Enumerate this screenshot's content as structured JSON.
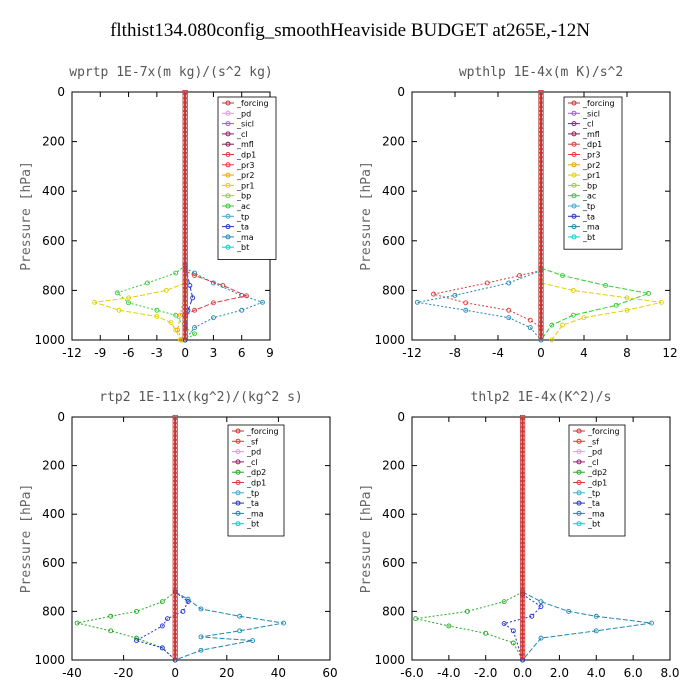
{
  "title": "flthist134.080config_smoothHeaviside  BUDGET at265E,-12N",
  "colors": {
    "_forcing": "#cc3333",
    "_pd": "#e89ad8",
    "_sicl": "#9a5fcf",
    "_cl": "#9a1a6e",
    "_mfl": "#8b1a4e",
    "_dp1": "#e03a3a",
    "_pr3": "#ff3333",
    "_pr2": "#f4a300",
    "_pr1": "#e0d000",
    "_bp": "#9acd32",
    "_ac": "#33cc33",
    "_tp": "#3fa9d6",
    "_ta": "#2233cc",
    "_ma": "#1f87b4",
    "_bt": "#00d4d4",
    "_sf": "#ff3030",
    "_dp2": "#22aa22",
    "axis_label": "#666666",
    "title_gray": "#555555"
  },
  "chart_data": [
    {
      "type": "line",
      "title": "wprtp   1E-7x(m kg)/(s^2 kg)",
      "ylabel": "Pressure [hPa]",
      "ylim": [
        1000,
        0
      ],
      "xlim": [
        -12,
        9
      ],
      "xticks": [
        "-12",
        "-9",
        "-6",
        "-3",
        "0",
        "3",
        "6",
        "9"
      ],
      "yticks": [
        "0",
        "200",
        "400",
        "600",
        "800",
        "1000"
      ],
      "legend": [
        "_forcing",
        "_pd",
        "_sicl",
        "_cl",
        "_mfl",
        "_dp1",
        "_pr3",
        "_pr2",
        "_pr1",
        "_bp",
        "_ac",
        "_tp",
        "_ta",
        "_ma",
        "_bt"
      ],
      "series": [
        {
          "name": "_ac",
          "points": [
            [
              0,
              700
            ],
            [
              -1,
              730
            ],
            [
              -4,
              770
            ],
            [
              -7.2,
              810
            ],
            [
              -6,
              850
            ],
            [
              -3,
              880
            ],
            [
              -1,
              900
            ],
            [
              0,
              950
            ],
            [
              1,
              975
            ],
            [
              0,
              1000
            ]
          ]
        },
        {
          "name": "_pr1",
          "points": [
            [
              0,
              770
            ],
            [
              -2,
              800
            ],
            [
              -6,
              830
            ],
            [
              -9.6,
              848
            ],
            [
              -7,
              880
            ],
            [
              -3,
              905
            ],
            [
              -1.5,
              930
            ],
            [
              -1,
              960
            ],
            [
              -0.5,
              1000
            ]
          ]
        },
        {
          "name": "_ma",
          "points": [
            [
              0,
              710
            ],
            [
              1,
              730
            ],
            [
              3,
              770
            ],
            [
              6,
              820
            ],
            [
              8.2,
              848
            ],
            [
              6,
              880
            ],
            [
              3,
              910
            ],
            [
              1,
              950
            ],
            [
              0,
              1000
            ]
          ]
        },
        {
          "name": "_dp1",
          "points": [
            [
              0,
              720
            ],
            [
              1,
              740
            ],
            [
              4,
              780
            ],
            [
              6.5,
              822
            ],
            [
              3,
              850
            ],
            [
              1,
              880
            ],
            [
              0,
              900
            ]
          ]
        },
        {
          "name": "_pr2",
          "points": [
            [
              0,
              800
            ],
            [
              -0.5,
              900
            ],
            [
              -0.8,
              960
            ],
            [
              -0.3,
              1000
            ]
          ]
        },
        {
          "name": "_ta",
          "points": [
            [
              0,
              700
            ],
            [
              0.5,
              780
            ],
            [
              0.8,
              830
            ],
            [
              0.3,
              880
            ],
            [
              0,
              1000
            ]
          ]
        },
        {
          "name": "_bt",
          "points": [
            [
              0,
              0
            ],
            [
              0,
              1000
            ]
          ]
        },
        {
          "name": "_forcing",
          "points": [
            [
              0,
              0
            ],
            [
              0,
              1000
            ]
          ]
        }
      ]
    },
    {
      "type": "line",
      "title": "wpthlp   1E-4x(m K)/s^2",
      "ylabel": "Pressure [hPa]",
      "ylim": [
        1000,
        0
      ],
      "xlim": [
        -12,
        12
      ],
      "xticks": [
        "-12",
        "-8",
        "-4",
        "0",
        "4",
        "8",
        "12"
      ],
      "yticks": [
        "0",
        "200",
        "400",
        "600",
        "800",
        "1000"
      ],
      "legend": [
        "_forcing",
        "_sicl",
        "_cl",
        "_mfl",
        "_dp1",
        "_pr3",
        "_pr2",
        "_pr1",
        "_bp",
        "_ac",
        "_tp",
        "_ta",
        "_ma",
        "_bt"
      ],
      "series": [
        {
          "name": "_dp1",
          "points": [
            [
              0,
              720
            ],
            [
              -2,
              740
            ],
            [
              -5,
              770
            ],
            [
              -10,
              815
            ],
            [
              -7,
              850
            ],
            [
              -3,
              880
            ],
            [
              -1,
              920
            ],
            [
              0,
              950
            ]
          ]
        },
        {
          "name": "_ac",
          "points": [
            [
              0,
              710
            ],
            [
              2,
              740
            ],
            [
              6,
              780
            ],
            [
              10,
              812
            ],
            [
              7,
              860
            ],
            [
              3,
              900
            ],
            [
              1,
              940
            ],
            [
              0,
              1000
            ]
          ]
        },
        {
          "name": "_ma",
          "points": [
            [
              0,
              720
            ],
            [
              -3,
              770
            ],
            [
              -8,
              820
            ],
            [
              -11.5,
              848
            ],
            [
              -7,
              880
            ],
            [
              -3,
              910
            ],
            [
              -1,
              950
            ],
            [
              0,
              1000
            ]
          ]
        },
        {
          "name": "_pr1",
          "points": [
            [
              0,
              770
            ],
            [
              3,
              800
            ],
            [
              8,
              830
            ],
            [
              11.2,
              848
            ],
            [
              8,
              880
            ],
            [
              4,
              910
            ],
            [
              2,
              940
            ],
            [
              1,
              1000
            ]
          ]
        },
        {
          "name": "_bt",
          "points": [
            [
              0,
              0
            ],
            [
              0,
              1000
            ]
          ]
        },
        {
          "name": "_forcing",
          "points": [
            [
              0,
              0
            ],
            [
              0,
              1000
            ]
          ]
        }
      ]
    },
    {
      "type": "line",
      "title": "rtp2   1E-11x(kg^2)/(kg^2 s)",
      "ylabel": "Pressure [hPa]",
      "ylim": [
        1000,
        0
      ],
      "xlim": [
        -40,
        60
      ],
      "xticks": [
        "-40",
        "-20",
        "0",
        "20",
        "40",
        "60"
      ],
      "yticks": [
        "0",
        "200",
        "400",
        "600",
        "800",
        "1000"
      ],
      "legend": [
        "_forcing",
        "_sf",
        "_pd",
        "_cl",
        "_dp2",
        "_dp1",
        "_tp",
        "_ta",
        "_ma",
        "_bt"
      ],
      "series": [
        {
          "name": "_dp2",
          "points": [
            [
              0,
              720
            ],
            [
              -5,
              760
            ],
            [
              -15,
              800
            ],
            [
              -25,
              820
            ],
            [
              -38,
              848
            ],
            [
              -25,
              880
            ],
            [
              -15,
              910
            ],
            [
              -5,
              950
            ],
            [
              0,
              1000
            ]
          ]
        },
        {
          "name": "_ma",
          "points": [
            [
              0,
              720
            ],
            [
              5,
              750
            ],
            [
              10,
              790
            ],
            [
              25,
              820
            ],
            [
              42,
              848
            ],
            [
              25,
              880
            ],
            [
              10,
              905
            ],
            [
              30,
              920
            ],
            [
              10,
              960
            ],
            [
              0,
              1000
            ]
          ]
        },
        {
          "name": "_ta",
          "points": [
            [
              0,
              720
            ],
            [
              5,
              760
            ],
            [
              3,
              800
            ],
            [
              -3,
              830
            ],
            [
              -5,
              860
            ],
            [
              -15,
              920
            ],
            [
              -5,
              950
            ],
            [
              0,
              1000
            ]
          ]
        },
        {
          "name": "_forcing",
          "points": [
            [
              0,
              0
            ],
            [
              0,
              1000
            ]
          ]
        }
      ]
    },
    {
      "type": "line",
      "title": "thlp2   1E-4x(K^2)/s",
      "ylabel": "Pressure [hPa]",
      "ylim": [
        1000,
        0
      ],
      "xlim": [
        -6,
        8
      ],
      "xticks": [
        "-6.0",
        "-4.0",
        "-2.0",
        "0.0",
        "2.0",
        "4.0",
        "6.0",
        "8.0"
      ],
      "yticks": [
        "0",
        "200",
        "400",
        "600",
        "800",
        "1000"
      ],
      "legend": [
        "_forcing",
        "_sf",
        "_pd",
        "_cl",
        "_dp2",
        "_dp1",
        "_tp",
        "_ta",
        "_ma",
        "_bt"
      ],
      "series": [
        {
          "name": "_dp2",
          "points": [
            [
              0,
              720
            ],
            [
              -1,
              760
            ],
            [
              -3,
              800
            ],
            [
              -5.8,
              830
            ],
            [
              -4,
              860
            ],
            [
              -2,
              890
            ],
            [
              -0.5,
              930
            ],
            [
              0,
              1000
            ]
          ]
        },
        {
          "name": "_ma",
          "points": [
            [
              0,
              720
            ],
            [
              1,
              760
            ],
            [
              2.5,
              800
            ],
            [
              4,
              820
            ],
            [
              7,
              848
            ],
            [
              4,
              880
            ],
            [
              1,
              910
            ],
            [
              0,
              1000
            ]
          ]
        },
        {
          "name": "_ta",
          "points": [
            [
              0,
              730
            ],
            [
              1,
              780
            ],
            [
              0.5,
              820
            ],
            [
              -1,
              850
            ],
            [
              -0.5,
              880
            ],
            [
              0,
              1000
            ]
          ]
        },
        {
          "name": "_forcing",
          "points": [
            [
              0,
              0
            ],
            [
              0,
              1000
            ]
          ]
        }
      ]
    }
  ]
}
